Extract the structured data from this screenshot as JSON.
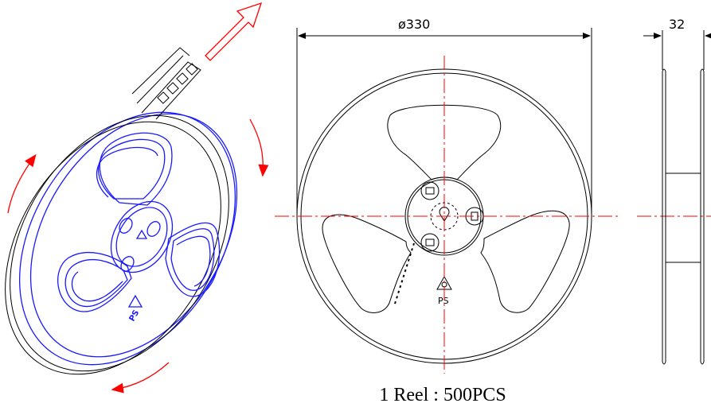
{
  "dimensions": {
    "diameter_label": "ø330",
    "width_label": "32"
  },
  "caption": "1 Reel : 500PCS",
  "material_mark": "PS",
  "colors": {
    "outline": "#000000",
    "perspective_reel": "#1a1aff",
    "arrows": "#ff0000",
    "centerline": "#ff0000"
  },
  "icons": {
    "recycle_mark": "recycle-triangle-icon",
    "direction_arrow": "rotation-arrow-icon",
    "pull_arrow": "tape-pull-arrow-icon"
  }
}
